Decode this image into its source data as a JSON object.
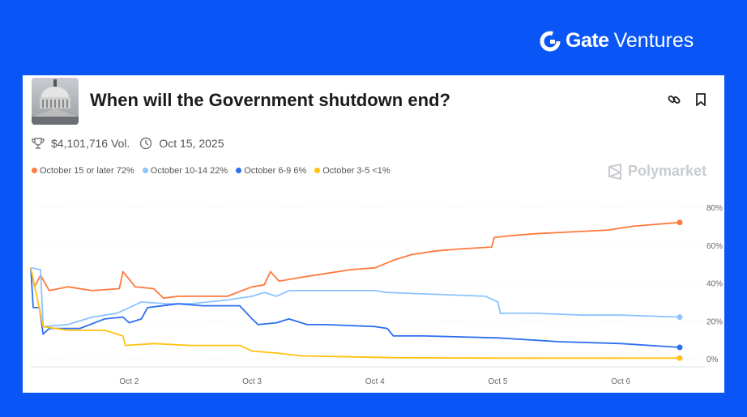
{
  "brand": {
    "bold": "Gate",
    "light": "Ventures"
  },
  "market": {
    "title": "When will the Government shutdown end?",
    "volume": "$4,101,716 Vol.",
    "end_date": "Oct 15, 2025",
    "source": "Polymarket"
  },
  "legend": [
    {
      "label": "October 15 or later 72%",
      "color": "#ff7a3d"
    },
    {
      "label": "October 10-14 22%",
      "color": "#8cc3ff"
    },
    {
      "label": "October 6-9 6%",
      "color": "#2d6ef0"
    },
    {
      "label": "October 3-5 <1%",
      "color": "#ffc20e"
    }
  ],
  "chart_data": {
    "type": "line",
    "xlabel": "",
    "ylabel": "",
    "x_ticks": [
      {
        "v": 2,
        "label": "Oct 2"
      },
      {
        "v": 3,
        "label": "Oct 3"
      },
      {
        "v": 4,
        "label": "Oct 4"
      },
      {
        "v": 5,
        "label": "Oct 5"
      },
      {
        "v": 6,
        "label": "Oct 6"
      }
    ],
    "y_ticks": [
      {
        "v": 0,
        "label": "0%"
      },
      {
        "v": 20,
        "label": "20%"
      },
      {
        "v": 40,
        "label": "40%"
      },
      {
        "v": 60,
        "label": "60%"
      },
      {
        "v": 80,
        "label": "80%"
      }
    ],
    "xlim": [
      1.2,
      6.5
    ],
    "ylim": [
      0,
      80
    ],
    "grid": true,
    "series": [
      {
        "name": "October 15 or later",
        "color": "#ff7a3d",
        "points": [
          [
            1.2,
            48
          ],
          [
            1.23,
            38
          ],
          [
            1.28,
            44
          ],
          [
            1.35,
            36
          ],
          [
            1.5,
            38
          ],
          [
            1.7,
            36
          ],
          [
            1.92,
            37
          ],
          [
            1.95,
            46
          ],
          [
            2.05,
            38
          ],
          [
            2.2,
            37
          ],
          [
            2.28,
            32
          ],
          [
            2.4,
            33
          ],
          [
            2.8,
            33
          ],
          [
            3.0,
            38
          ],
          [
            3.1,
            39
          ],
          [
            3.15,
            46
          ],
          [
            3.22,
            41
          ],
          [
            3.4,
            43
          ],
          [
            3.6,
            45
          ],
          [
            3.8,
            47
          ],
          [
            4.0,
            48
          ],
          [
            4.15,
            52
          ],
          [
            4.3,
            55
          ],
          [
            4.5,
            57
          ],
          [
            4.7,
            58
          ],
          [
            4.95,
            59
          ],
          [
            4.97,
            64
          ],
          [
            5.1,
            65
          ],
          [
            5.3,
            66
          ],
          [
            5.6,
            67
          ],
          [
            5.9,
            68
          ],
          [
            6.0,
            69
          ],
          [
            6.1,
            70
          ],
          [
            6.48,
            72
          ]
        ]
      },
      {
        "name": "October 10-14",
        "color": "#8cc3ff",
        "points": [
          [
            1.2,
            48
          ],
          [
            1.28,
            47
          ],
          [
            1.3,
            17
          ],
          [
            1.5,
            18
          ],
          [
            1.7,
            22
          ],
          [
            1.9,
            24
          ],
          [
            2.0,
            27
          ],
          [
            2.1,
            30
          ],
          [
            2.3,
            29
          ],
          [
            2.5,
            29
          ],
          [
            2.8,
            31
          ],
          [
            3.0,
            33
          ],
          [
            3.1,
            35
          ],
          [
            3.2,
            33
          ],
          [
            3.3,
            36
          ],
          [
            3.5,
            36
          ],
          [
            4.0,
            36
          ],
          [
            4.1,
            35
          ],
          [
            4.5,
            34
          ],
          [
            4.9,
            33
          ],
          [
            5.0,
            30
          ],
          [
            5.02,
            24
          ],
          [
            5.3,
            24
          ],
          [
            5.7,
            23
          ],
          [
            6.0,
            23
          ],
          [
            6.48,
            22
          ]
        ]
      },
      {
        "name": "October 6-9",
        "color": "#2d6ef0",
        "points": [
          [
            1.2,
            48
          ],
          [
            1.22,
            27
          ],
          [
            1.27,
            27
          ],
          [
            1.3,
            13
          ],
          [
            1.35,
            16
          ],
          [
            1.6,
            16
          ],
          [
            1.8,
            21
          ],
          [
            1.95,
            22
          ],
          [
            2.0,
            19
          ],
          [
            2.1,
            21
          ],
          [
            2.15,
            27
          ],
          [
            2.4,
            29
          ],
          [
            2.6,
            28
          ],
          [
            2.9,
            28
          ],
          [
            3.0,
            21
          ],
          [
            3.05,
            18
          ],
          [
            3.2,
            19
          ],
          [
            3.3,
            21
          ],
          [
            3.45,
            18
          ],
          [
            3.6,
            18
          ],
          [
            4.0,
            17
          ],
          [
            4.1,
            16
          ],
          [
            4.15,
            12
          ],
          [
            4.4,
            12
          ],
          [
            5.0,
            11
          ],
          [
            5.5,
            9
          ],
          [
            6.0,
            8
          ],
          [
            6.48,
            6
          ]
        ]
      },
      {
        "name": "October 3-5",
        "color": "#ffc20e",
        "points": [
          [
            1.2,
            48
          ],
          [
            1.3,
            17
          ],
          [
            1.5,
            15
          ],
          [
            1.8,
            15
          ],
          [
            1.95,
            12
          ],
          [
            1.97,
            7
          ],
          [
            2.2,
            8
          ],
          [
            2.5,
            7
          ],
          [
            2.9,
            7
          ],
          [
            3.0,
            4
          ],
          [
            3.2,
            3
          ],
          [
            3.4,
            1.5
          ],
          [
            3.8,
            1
          ],
          [
            4.2,
            0.5
          ],
          [
            5,
            0.3
          ],
          [
            6.48,
            0.3
          ]
        ]
      }
    ]
  }
}
